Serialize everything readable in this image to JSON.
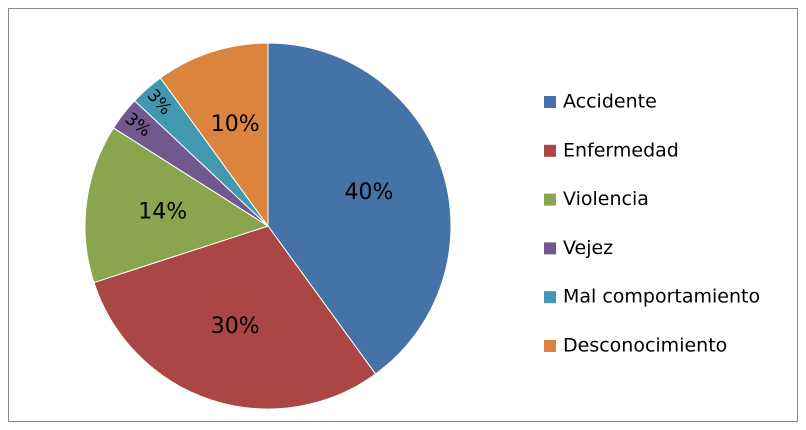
{
  "chart_data": {
    "type": "pie",
    "categories": [
      "Accidente",
      "Enfermedad",
      "Violencia",
      "Vejez",
      "Mal comportamiento",
      "Desconocimiento"
    ],
    "values": [
      40,
      30,
      14,
      3,
      3,
      10
    ],
    "value_labels": [
      "40%",
      "30%",
      "14%",
      "3%",
      "3%",
      "10%"
    ],
    "colors": [
      "#4572a7",
      "#aa4643",
      "#89a54e",
      "#71588f",
      "#4198af",
      "#db843d"
    ],
    "legend": "right"
  }
}
